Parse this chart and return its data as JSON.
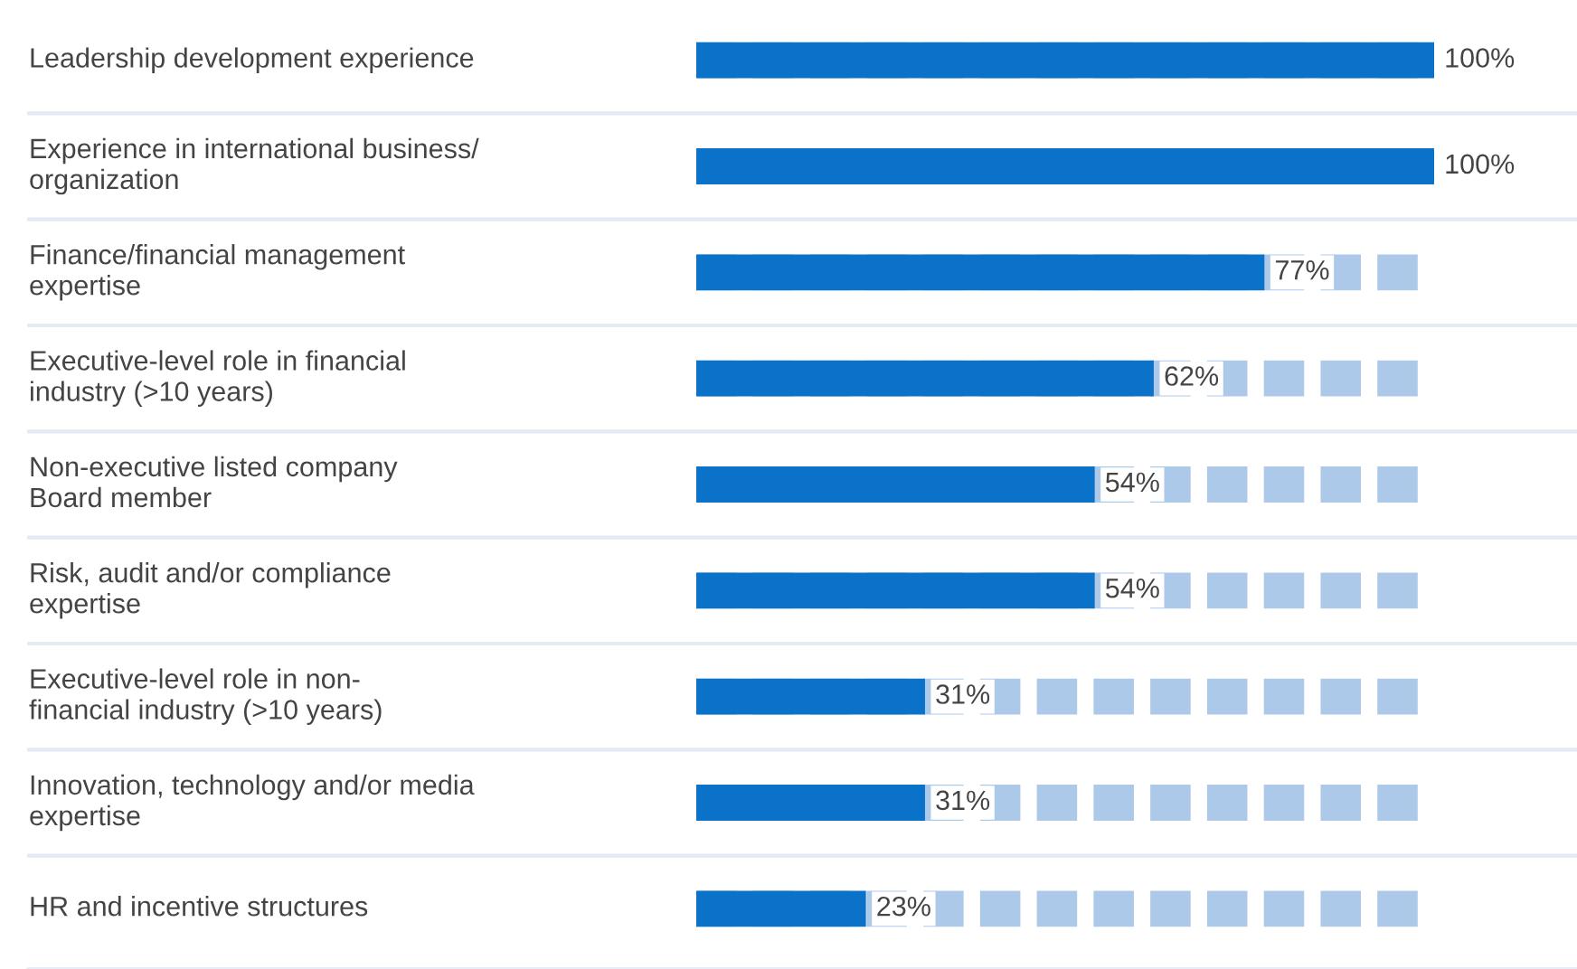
{
  "chart_data": {
    "type": "bar",
    "orientation": "horizontal",
    "categories": [
      "Leadership development experience",
      "Experience in international business/\norganization",
      "Finance/financial management\nexpertise",
      "Executive-level role in financial\nindustry (>10 years)",
      "Non-executive listed company\nBoard member",
      "Risk, audit and/or compliance\nexpertise",
      "Executive-level role in non-\nfinancial industry (>10 years)",
      "Innovation, technology and/or media\nexpertise",
      "HR and incentive structures"
    ],
    "values": [
      100,
      100,
      77,
      62,
      54,
      54,
      31,
      31,
      23
    ],
    "value_labels": [
      "100%",
      "100%",
      "77%",
      "62%",
      "54%",
      "54%",
      "31%",
      "31%",
      "23%"
    ],
    "color": "#0b72c9",
    "xlim": [
      0,
      100
    ],
    "tick_labels": "y"
  }
}
